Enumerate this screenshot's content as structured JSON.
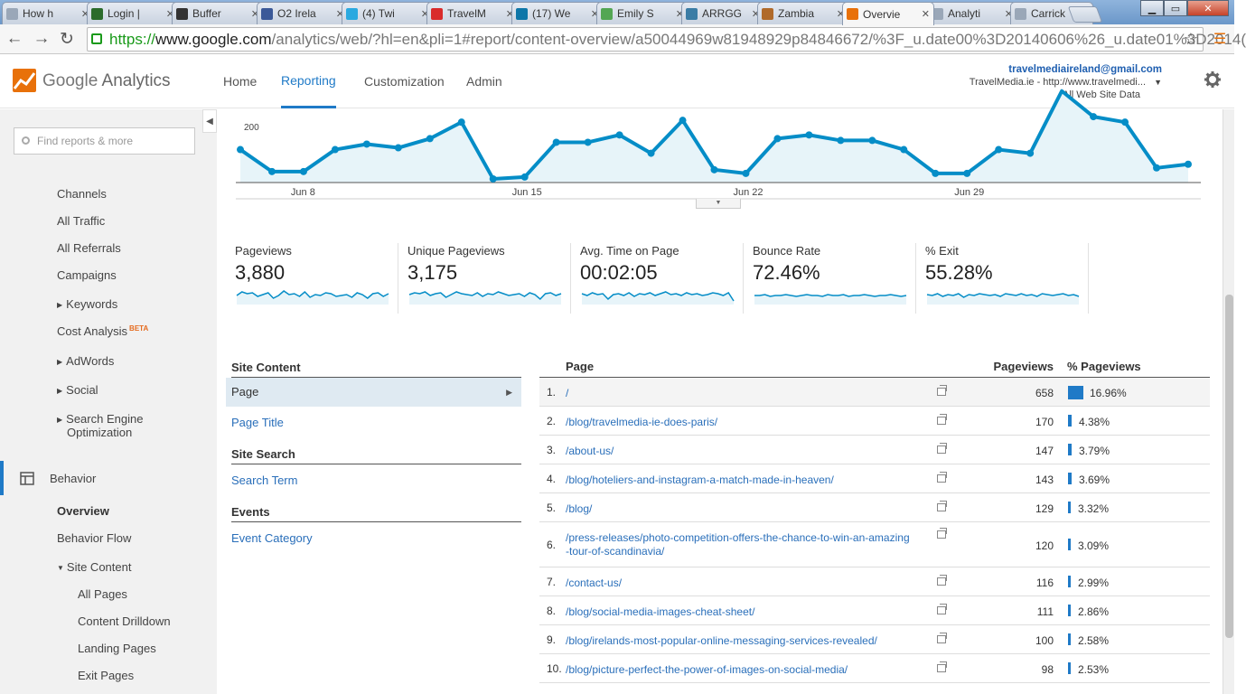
{
  "browser": {
    "tabs": [
      {
        "label": "How h",
        "favicon_color": "#9aa7b8",
        "icon": "page-icon"
      },
      {
        "label": "Login |",
        "favicon_color": "#2b6b2b",
        "icon": "site-icon"
      },
      {
        "label": "Buffer",
        "favicon_color": "#333333",
        "icon": "buffer-icon"
      },
      {
        "label": "O2 Irela",
        "favicon_color": "#3b5998",
        "icon": "facebook-icon"
      },
      {
        "label": "(4) Twi",
        "favicon_color": "#2aa9e0",
        "icon": "twitter-icon"
      },
      {
        "label": "TravelM",
        "favicon_color": "#d92b2b",
        "icon": "youtube-icon"
      },
      {
        "label": "(17) We",
        "favicon_color": "#0e76a8",
        "icon": "linkedin-icon"
      },
      {
        "label": "Emily S",
        "favicon_color": "#53a653",
        "icon": "site-icon"
      },
      {
        "label": "ARRGG",
        "favicon_color": "#3a7ca5",
        "icon": "buffer-icon"
      },
      {
        "label": "Zambia",
        "favicon_color": "#b06a2a",
        "icon": "site-icon"
      },
      {
        "label": "Overvie",
        "favicon_color": "#e8710a",
        "icon": "analytics-icon",
        "active": true
      },
      {
        "label": "Analyti",
        "favicon_color": "#9aa7b8",
        "icon": "page-icon"
      },
      {
        "label": "Carrick",
        "favicon_color": "#9aa7b8",
        "icon": "page-icon"
      }
    ],
    "close_glyph": "✕",
    "window_buttons": {
      "minimize": "▁",
      "maximize": "▭",
      "close": "✕"
    },
    "nav": {
      "back": "←",
      "forward": "→",
      "reload": "↻",
      "menu": "☰",
      "star": "☆"
    },
    "url": {
      "scheme": "https://",
      "host": "www.google.com",
      "path": "/analytics/web/?hl=en&pli=1#report/content-overview/a50044969w81948929p84846672/%3F_u.date00%3D20140606%26_u.date01%3D2014("
    }
  },
  "header": {
    "logo_text_1": "Google",
    "logo_text_2": "Analytics",
    "nav": [
      "Home",
      "Reporting",
      "Customization",
      "Admin"
    ],
    "active_nav": "Reporting",
    "account": {
      "email": "travelmediaireland@gmail.com",
      "property": "TravelMedia.ie - http://www.travelmedi...",
      "view": "All Web Site Data"
    },
    "settings_icon": "gear-icon"
  },
  "sidebar": {
    "search_placeholder": "Find reports & more",
    "collapse_glyph": "◀",
    "items": [
      {
        "label": "Channels"
      },
      {
        "label": "All Traffic"
      },
      {
        "label": "All Referrals"
      },
      {
        "label": "Campaigns"
      },
      {
        "label": "Keywords",
        "expandable": true
      },
      {
        "label": "Cost Analysis",
        "badge": "BETA"
      },
      {
        "label": "AdWords",
        "expandable": true
      },
      {
        "label": "Social",
        "expandable": true
      },
      {
        "label": "Search Engine",
        "label2": "Optimization",
        "expandable": true
      },
      {
        "label": "Behavior",
        "section": true
      },
      {
        "label": "Overview",
        "selected": true
      },
      {
        "label": "Behavior Flow"
      },
      {
        "label": "Site Content",
        "expanded": true
      },
      {
        "label": "All Pages"
      },
      {
        "label": "Content Drilldown"
      },
      {
        "label": "Landing Pages"
      },
      {
        "label": "Exit Pages"
      }
    ]
  },
  "chart_data": {
    "type": "line",
    "ylabel_tick": "200",
    "x_ticks": [
      "Jun 8",
      "Jun 15",
      "Jun 22",
      "Jun 29"
    ],
    "x_start": "Jun 6",
    "x": [
      "Jun 6",
      "Jun 7",
      "Jun 8",
      "Jun 9",
      "Jun 10",
      "Jun 11",
      "Jun 12",
      "Jun 13",
      "Jun 14",
      "Jun 15",
      "Jun 16",
      "Jun 17",
      "Jun 18",
      "Jun 19",
      "Jun 20",
      "Jun 21",
      "Jun 22",
      "Jun 23",
      "Jun 24",
      "Jun 25",
      "Jun 26",
      "Jun 27",
      "Jun 28",
      "Jun 29",
      "Jun 30",
      "Jul 1",
      "Jul 2",
      "Jul 3",
      "Jul 4",
      "Jul 5",
      "Jul 6"
    ],
    "series": [
      {
        "values": [
          200,
          140,
          140,
          200,
          215,
          205,
          230,
          275,
          120,
          125,
          220,
          220,
          240,
          190,
          280,
          145,
          135,
          230,
          240,
          225,
          225,
          200,
          135,
          135,
          200,
          190,
          360,
          290,
          275,
          150,
          160
        ]
      }
    ],
    "ylim": [
      110,
      310
    ],
    "color": "#058dc7",
    "fill": "#e7f4f9"
  },
  "metrics": [
    {
      "label": "Pageviews",
      "value": "3,880",
      "spark": [
        10,
        14,
        12,
        13,
        9,
        11,
        13,
        7,
        10,
        15,
        11,
        12,
        9,
        14,
        8,
        11,
        10,
        13,
        12,
        9,
        10,
        11,
        8,
        13,
        11,
        7,
        12,
        13,
        9,
        12
      ]
    },
    {
      "label": "Unique Pageviews",
      "value": "3,175",
      "spark": [
        11,
        13,
        12,
        14,
        10,
        12,
        13,
        8,
        11,
        14,
        12,
        11,
        10,
        13,
        9,
        12,
        11,
        14,
        12,
        10,
        11,
        12,
        9,
        13,
        11,
        6,
        12,
        13,
        10,
        12
      ]
    },
    {
      "label": "Avg. Time on Page",
      "value": "00:02:05",
      "spark": [
        12,
        10,
        13,
        11,
        12,
        6,
        11,
        12,
        10,
        13,
        9,
        12,
        11,
        13,
        10,
        12,
        14,
        11,
        12,
        10,
        13,
        11,
        12,
        10,
        11,
        13,
        12,
        10,
        13,
        4
      ]
    },
    {
      "label": "Bounce Rate",
      "value": "72.46%",
      "spark": [
        10,
        10,
        11,
        9,
        10,
        10,
        11,
        10,
        9,
        10,
        11,
        10,
        10,
        9,
        11,
        10,
        10,
        11,
        9,
        10,
        10,
        11,
        10,
        9,
        10,
        10,
        11,
        10,
        9,
        10
      ]
    },
    {
      "label": "% Exit",
      "value": "55.28%",
      "spark": [
        11,
        10,
        12,
        9,
        11,
        10,
        12,
        8,
        11,
        10,
        12,
        11,
        10,
        11,
        9,
        12,
        11,
        10,
        12,
        10,
        11,
        9,
        12,
        11,
        10,
        11,
        12,
        10,
        11,
        9
      ]
    }
  ],
  "site_content": {
    "sections": [
      {
        "head": "Site Content",
        "selected": "Page",
        "links": [
          "Page Title"
        ]
      },
      {
        "head": "Site Search",
        "links": [
          "Search Term"
        ]
      },
      {
        "head": "Events",
        "links": [
          "Event Category"
        ]
      }
    ]
  },
  "table": {
    "columns": [
      "Page",
      "Pageviews",
      "% Pageviews"
    ],
    "rows": [
      {
        "n": "1.",
        "page": "/",
        "pageviews": "658",
        "pct": "16.96%",
        "frac": 16.96
      },
      {
        "n": "2.",
        "page": "/blog/travelmedia-ie-does-paris/",
        "pageviews": "170",
        "pct": "4.38%",
        "frac": 4.38
      },
      {
        "n": "3.",
        "page": "/about-us/",
        "pageviews": "147",
        "pct": "3.79%",
        "frac": 3.79
      },
      {
        "n": "4.",
        "page": "/blog/hoteliers-and-instagram-a-match-made-in-heaven/",
        "pageviews": "143",
        "pct": "3.69%",
        "frac": 3.69
      },
      {
        "n": "5.",
        "page": "/blog/",
        "pageviews": "129",
        "pct": "3.32%",
        "frac": 3.32
      },
      {
        "n": "6.",
        "page": "/press-releases/photo-competition-offers-the-chance-to-win-an-amazing-tour-of-scandinavia/",
        "page_line1": "/press-releases/photo-competition-offers-the-chance-to-win-an-amazing",
        "page_line2": "-tour-of-scandinavia/",
        "pageviews": "120",
        "pct": "3.09%",
        "frac": 3.09
      },
      {
        "n": "7.",
        "page": "/contact-us/",
        "pageviews": "116",
        "pct": "2.99%",
        "frac": 2.99
      },
      {
        "n": "8.",
        "page": "/blog/social-media-images-cheat-sheet/",
        "pageviews": "111",
        "pct": "2.86%",
        "frac": 2.86
      },
      {
        "n": "9.",
        "page": "/blog/irelands-most-popular-online-messaging-services-revealed/",
        "pageviews": "100",
        "pct": "2.58%",
        "frac": 2.58
      },
      {
        "n": "10.",
        "page": "/blog/picture-perfect-the-power-of-images-on-social-media/",
        "pageviews": "98",
        "pct": "2.53%",
        "frac": 2.53
      }
    ]
  }
}
